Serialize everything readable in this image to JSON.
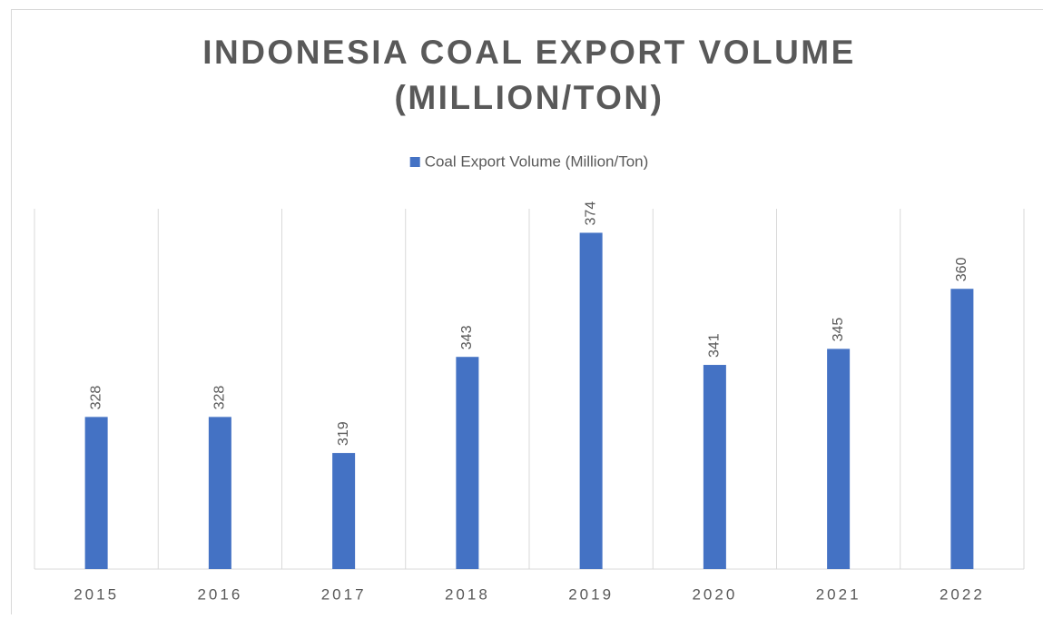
{
  "chart_data": {
    "type": "bar",
    "title": [
      "INDONESIA COAL EXPORT VOLUME",
      "(MILLION/TON)"
    ],
    "categories": [
      "2015",
      "2016",
      "2017",
      "2018",
      "2019",
      "2020",
      "2021",
      "2022"
    ],
    "series": [
      {
        "name": "Coal Export Volume (Million/Ton)",
        "color": "#4472c4",
        "values": [
          328,
          328,
          319,
          343,
          374,
          341,
          345,
          360
        ]
      }
    ],
    "ylim": [
      290,
      380
    ],
    "grid": true,
    "legend": "top"
  }
}
